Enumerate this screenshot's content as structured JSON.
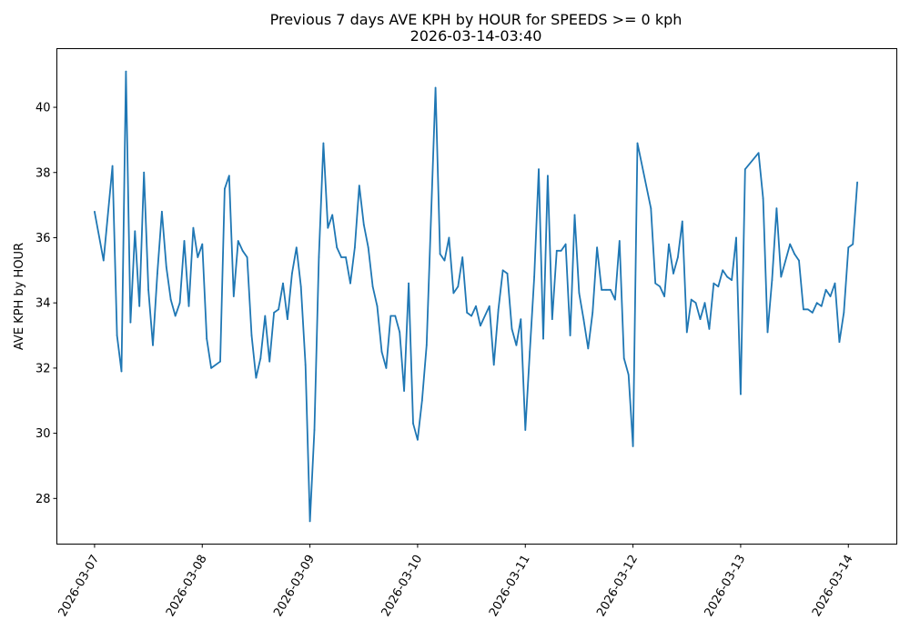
{
  "chart_data": {
    "type": "line",
    "title": "Previous 7 days AVE KPH by HOUR for SPEEDS >= 0 kph",
    "subtitle": "2026-03-14-03:40",
    "xlabel": "",
    "ylabel": "AVE KPH by HOUR",
    "x_start": "2026-03-07 00:00",
    "x_unit": "hours since x_start",
    "xlim_days": [
      -0.35,
      7.45
    ],
    "ylim": [
      26.6,
      41.8
    ],
    "grid": false,
    "x_tick_labels": [
      "2026-03-07",
      "2026-03-08",
      "2026-03-09",
      "2026-03-10",
      "2026-03-11",
      "2026-03-12",
      "2026-03-13",
      "2026-03-14"
    ],
    "y_ticks": [
      28,
      30,
      32,
      34,
      36,
      38,
      40
    ],
    "y_tick_labels": [
      "28",
      "30",
      "32",
      "34",
      "36",
      "38",
      "40"
    ],
    "series": [
      {
        "name": "AVE KPH",
        "color": "#1f77b4",
        "x": [
          0,
          2,
          4,
          5,
          6,
          7,
          8,
          9,
          10,
          11,
          12,
          13,
          14,
          15,
          16,
          17,
          18,
          19,
          20,
          21,
          22,
          23,
          24,
          25,
          26,
          28,
          29,
          30,
          31,
          32,
          33,
          34,
          35,
          36,
          37,
          38,
          39,
          40,
          41,
          42,
          43,
          44,
          45,
          46,
          47,
          48,
          49,
          50,
          51,
          52,
          53,
          54,
          55,
          56,
          57,
          58,
          59,
          60,
          61,
          62,
          63,
          64,
          65,
          66,
          67,
          68,
          69,
          70,
          71,
          72,
          73,
          74,
          76,
          77,
          78,
          79,
          80,
          81,
          82,
          83,
          84,
          85,
          86,
          88,
          89,
          90,
          91,
          92,
          93,
          94,
          95,
          96,
          97,
          98,
          99,
          100,
          101,
          102,
          103,
          104,
          105,
          106,
          107,
          108,
          109,
          110,
          111,
          112,
          113,
          114,
          115,
          116,
          117,
          118,
          119,
          120,
          121,
          124,
          125,
          126,
          127,
          128,
          129,
          130,
          131,
          132,
          133,
          134,
          135,
          136,
          137,
          138,
          139,
          140,
          141,
          142,
          143,
          144,
          145,
          148,
          149,
          150,
          151,
          152,
          153,
          155,
          156,
          157,
          158,
          159,
          160,
          161,
          162,
          163,
          164,
          165,
          166,
          167,
          168,
          169,
          170
        ],
        "values": [
          36.8,
          35.3,
          38.2,
          33.0,
          31.9,
          41.1,
          33.4,
          36.2,
          33.9,
          38.0,
          34.4,
          32.7,
          34.9,
          36.8,
          35.1,
          34.1,
          33.6,
          34.0,
          35.9,
          33.9,
          36.3,
          35.4,
          35.8,
          32.9,
          32.0,
          32.2,
          37.5,
          37.9,
          34.2,
          35.9,
          35.6,
          35.4,
          33.0,
          31.7,
          32.3,
          33.6,
          32.2,
          33.7,
          33.8,
          34.6,
          33.5,
          34.9,
          35.7,
          34.5,
          32.1,
          27.3,
          30.1,
          35.4,
          38.9,
          36.3,
          36.7,
          35.7,
          35.4,
          35.4,
          34.6,
          35.7,
          37.6,
          36.4,
          35.7,
          34.5,
          33.9,
          32.5,
          32.0,
          33.6,
          33.6,
          33.1,
          31.3,
          34.6,
          30.3,
          29.8,
          31.0,
          32.7,
          40.6,
          35.5,
          35.3,
          36.0,
          34.3,
          34.5,
          35.4,
          33.7,
          33.6,
          33.9,
          33.3,
          33.9,
          32.1,
          33.8,
          35.0,
          34.9,
          33.2,
          32.7,
          33.5,
          30.1,
          32.5,
          34.8,
          38.1,
          32.9,
          37.9,
          33.5,
          35.6,
          35.6,
          35.8,
          33.0,
          36.7,
          34.3,
          33.5,
          32.6,
          33.7,
          35.7,
          34.4,
          34.4,
          34.4,
          34.1,
          35.9,
          32.3,
          31.8,
          29.6,
          38.9,
          36.9,
          34.6,
          34.5,
          34.2,
          35.8,
          34.9,
          35.4,
          36.5,
          33.1,
          34.1,
          34.0,
          33.5,
          34.0,
          33.2,
          34.6,
          34.5,
          35.0,
          34.8,
          34.7,
          36.0,
          31.2,
          38.1,
          38.6,
          37.2,
          33.1,
          34.7,
          36.9,
          34.8,
          35.8,
          35.5,
          35.3,
          33.8,
          33.8,
          33.7,
          34.0,
          33.9,
          34.4,
          34.2,
          34.6,
          32.8,
          33.7,
          35.7,
          35.8,
          37.7
        ]
      }
    ]
  }
}
